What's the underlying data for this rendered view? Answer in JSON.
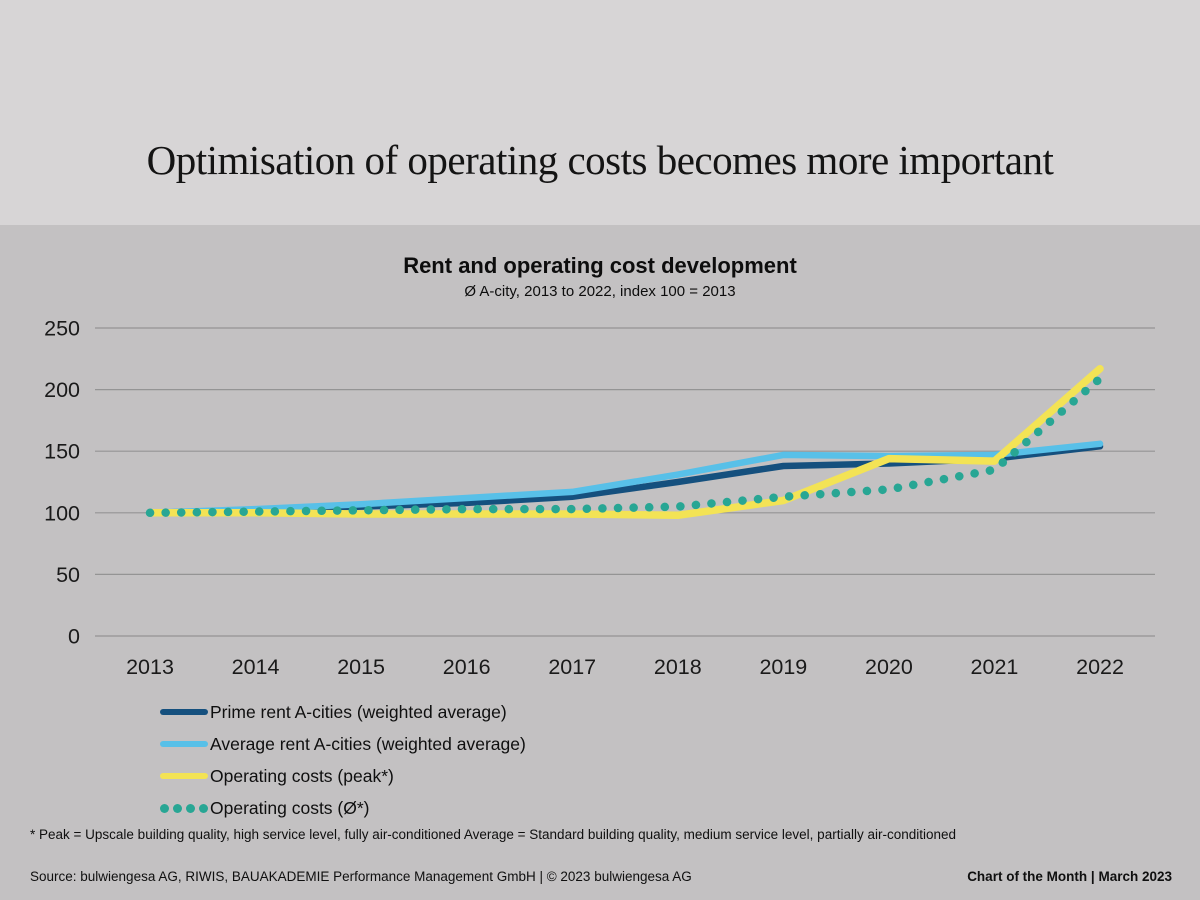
{
  "slide": {
    "title": "Optimisation of operating costs becomes more important"
  },
  "chart": {
    "title": "Rent and operating cost development",
    "subtitle": "Ø A-city, 2013 to 2022, index 100 = 2013"
  },
  "chart_data": {
    "type": "line",
    "title": "Rent and operating cost development",
    "subtitle": "Ø A-city, 2013 to 2022, index 100 = 2013",
    "x": [
      2013,
      2014,
      2015,
      2016,
      2017,
      2018,
      2019,
      2020,
      2021,
      2022
    ],
    "series": [
      {
        "name": "Prime rent A-cities (weighted average)",
        "color": "#15507e",
        "style": "solid",
        "width": 6.5,
        "values": [
          100,
          102,
          105,
          108,
          113,
          125,
          138,
          140,
          144,
          154
        ]
      },
      {
        "name": "Average rent A-cities (weighted average)",
        "color": "#58c0e8",
        "style": "solid",
        "width": 6.5,
        "values": [
          100,
          103,
          107,
          112,
          117,
          131,
          147,
          146,
          147,
          156
        ]
      },
      {
        "name": "Operating costs (peak*)",
        "color": "#f3e355",
        "style": "solid",
        "width": 7.5,
        "values": [
          100,
          100,
          99,
          99,
          99,
          98,
          110,
          144,
          142,
          217
        ]
      },
      {
        "name": "Operating costs (Ø*)",
        "color": "#28a694",
        "style": "dotted",
        "width": 8.5,
        "values": [
          100,
          101,
          102,
          103,
          103,
          105,
          113,
          119,
          135,
          209
        ]
      }
    ],
    "ylim": [
      0,
      250
    ],
    "yticks": [
      0,
      50,
      100,
      150,
      200,
      250
    ],
    "grid": "horizontal",
    "legend_position": "bottom-left",
    "colors": {
      "header_background": "#d7d5d6",
      "chart_background": "#c3c1c2",
      "gridline": "#949494",
      "text": "#121212"
    }
  },
  "footnote": "* Peak = Upscale building quality, high service level, fully air-conditioned Average = Standard building quality, medium service level, partially air-conditioned",
  "footer": {
    "source": "Source: bulwiengesa AG, RIWIS, BAUAKADEMIE Performance Management GmbH | © 2023 bulwiengesa AG",
    "right": "Chart of the Month | March 2023"
  }
}
